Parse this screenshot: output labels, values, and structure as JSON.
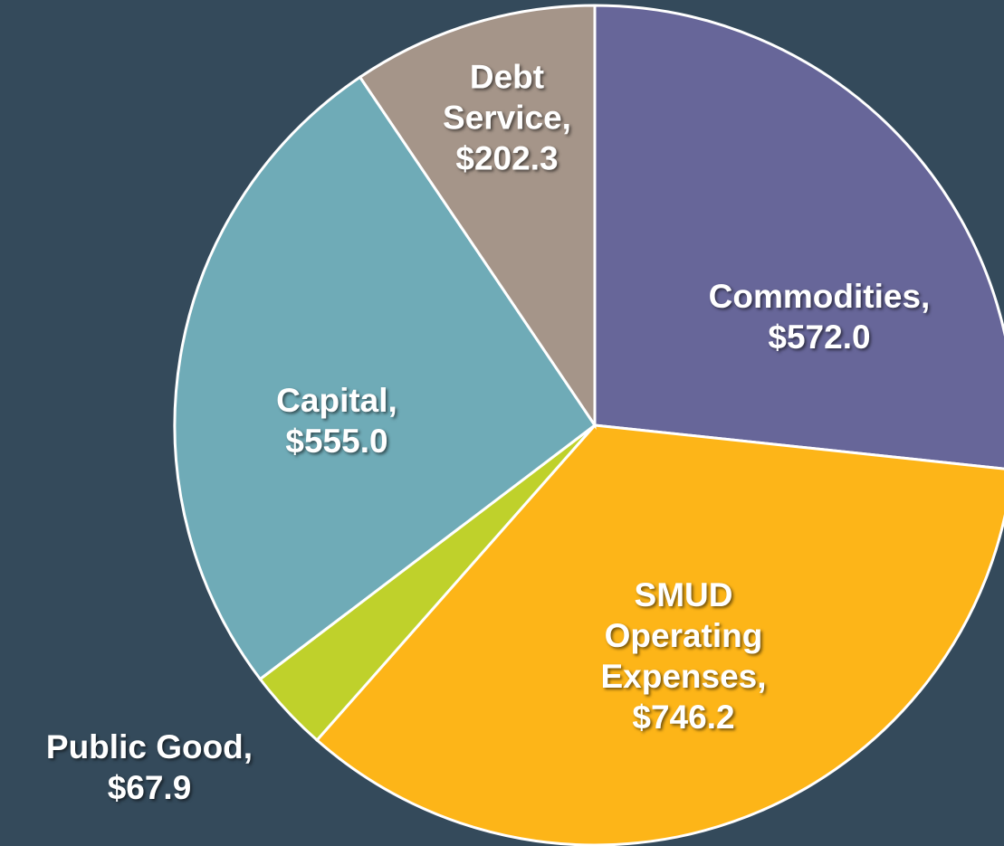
{
  "chart_data": {
    "type": "pie",
    "categories": [
      "Commodities,",
      "SMUD Operating Expenses,",
      "Public Good,",
      "Capital,",
      "Debt Service,"
    ],
    "values": [
      572.0,
      746.2,
      67.9,
      555.0,
      202.3
    ],
    "value_labels": [
      "$572.0",
      "$746.2",
      "$67.9",
      "$555.0",
      "$202.3"
    ],
    "colors": [
      "#676699",
      "#fdb518",
      "#bfd12b",
      "#6fabb7",
      "#a59589"
    ]
  }
}
